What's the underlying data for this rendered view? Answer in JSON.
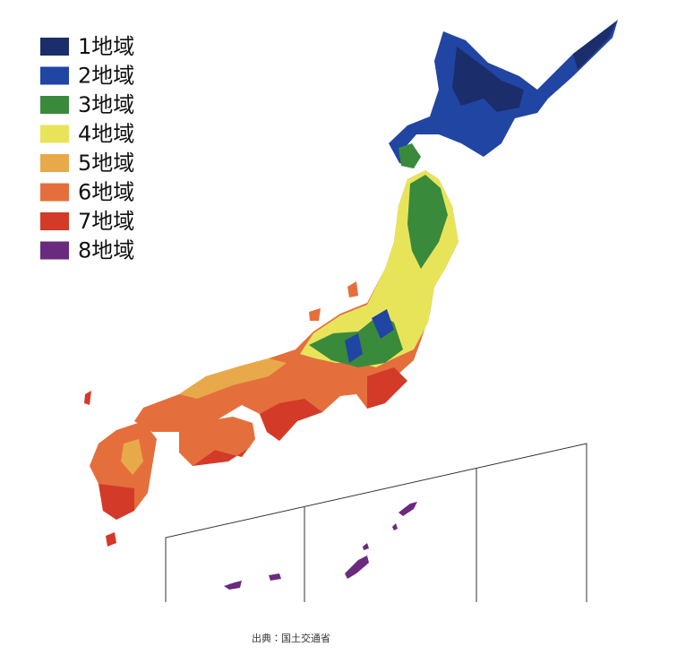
{
  "legend": [
    {
      "label": "1地域",
      "color": "#1c2d6b"
    },
    {
      "label": "2地域",
      "color": "#2145a3"
    },
    {
      "label": "3地域",
      "color": "#3a8a3c"
    },
    {
      "label": "4地域",
      "color": "#e8e45a"
    },
    {
      "label": "5地域",
      "color": "#e8a94a"
    },
    {
      "label": "6地域",
      "color": "#e46f3c"
    },
    {
      "label": "7地域",
      "color": "#d33a28"
    },
    {
      "label": "8地域",
      "color": "#6a2a7e"
    }
  ],
  "source": "出典：国土交通省"
}
